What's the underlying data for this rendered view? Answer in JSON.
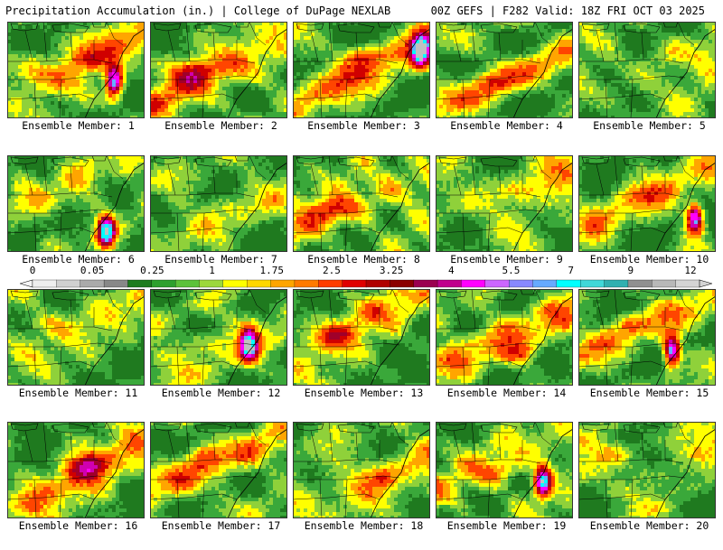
{
  "header": {
    "left_title": "Precipitation Accumulation (in.) | College of DuPage NEXLAB",
    "right_title": "00Z GEFS | F282 Valid: 18Z FRI OCT 03 2025"
  },
  "colorbar": {
    "labels": [
      "0",
      "0.05",
      "0.25",
      "1",
      "1.75",
      "2.5",
      "3.25",
      "4",
      "5.5",
      "7",
      "9",
      "12"
    ],
    "colors": [
      "#eeeeee",
      "#d0d0d0",
      "#aaaaaa",
      "#888888",
      "#1e7c1e",
      "#2ea02e",
      "#5cc23a",
      "#9cd83c",
      "#ffff00",
      "#ffd700",
      "#ffa500",
      "#ff7a00",
      "#ff3c00",
      "#e00000",
      "#b00000",
      "#8b0000",
      "#9b0050",
      "#c0008c",
      "#ff00ff",
      "#cc66ff",
      "#8888ff",
      "#66aaff",
      "#00ffff",
      "#40d8d8",
      "#30b0b0",
      "#909090",
      "#b8b8b8",
      "#d4d4d4"
    ]
  },
  "panel_label_prefix": "Ensemble Member:",
  "members": [
    {
      "id": "1",
      "label": "Ensemble Member: 1",
      "intensity": 0.62,
      "seed": 11,
      "tropical": true,
      "tx": 0.78,
      "ty": 0.62
    },
    {
      "id": "2",
      "label": "Ensemble Member: 2",
      "intensity": 0.8,
      "seed": 23,
      "tropical": false,
      "tx": 0.4,
      "ty": 0.45
    },
    {
      "id": "3",
      "label": "Ensemble Member: 3",
      "intensity": 0.72,
      "seed": 37,
      "tropical": true,
      "tx": 0.93,
      "ty": 0.3
    },
    {
      "id": "4",
      "label": "Ensemble Member: 4",
      "intensity": 0.55,
      "seed": 41,
      "tropical": false,
      "tx": 0.25,
      "ty": 0.5
    },
    {
      "id": "5",
      "label": "Ensemble Member: 5",
      "intensity": 0.35,
      "seed": 53,
      "tropical": false,
      "tx": 0.6,
      "ty": 0.5
    },
    {
      "id": "6",
      "label": "Ensemble Member: 6",
      "intensity": 0.3,
      "seed": 61,
      "tropical": true,
      "tx": 0.72,
      "ty": 0.78
    },
    {
      "id": "7",
      "label": "Ensemble Member: 7",
      "intensity": 0.28,
      "seed": 73,
      "tropical": false,
      "tx": 0.5,
      "ty": 0.4
    },
    {
      "id": "8",
      "label": "Ensemble Member: 8",
      "intensity": 0.7,
      "seed": 89,
      "tropical": false,
      "tx": 0.55,
      "ty": 0.45
    },
    {
      "id": "9",
      "label": "Ensemble Member: 9",
      "intensity": 0.48,
      "seed": 97,
      "tropical": false,
      "tx": 0.35,
      "ty": 0.6
    },
    {
      "id": "10",
      "label": "Ensemble Member: 10",
      "intensity": 0.45,
      "seed": 103,
      "tropical": true,
      "tx": 0.85,
      "ty": 0.65
    },
    {
      "id": "11",
      "label": "Ensemble Member: 11",
      "intensity": 0.4,
      "seed": 113,
      "tropical": false,
      "tx": 0.45,
      "ty": 0.45
    },
    {
      "id": "12",
      "label": "Ensemble Member: 12",
      "intensity": 0.4,
      "seed": 127,
      "tropical": true,
      "tx": 0.72,
      "ty": 0.58
    },
    {
      "id": "13",
      "label": "Ensemble Member: 13",
      "intensity": 0.55,
      "seed": 131,
      "tropical": false,
      "tx": 0.45,
      "ty": 0.4
    },
    {
      "id": "14",
      "label": "Ensemble Member: 14",
      "intensity": 0.7,
      "seed": 139,
      "tropical": false,
      "tx": 0.3,
      "ty": 0.7
    },
    {
      "id": "15",
      "label": "Ensemble Member: 15",
      "intensity": 0.5,
      "seed": 151,
      "tropical": true,
      "tx": 0.68,
      "ty": 0.65
    },
    {
      "id": "16",
      "label": "Ensemble Member: 16",
      "intensity": 0.72,
      "seed": 163,
      "tropical": false,
      "tx": 0.25,
      "ty": 0.55
    },
    {
      "id": "17",
      "label": "Ensemble Member: 17",
      "intensity": 0.62,
      "seed": 173,
      "tropical": false,
      "tx": 0.28,
      "ty": 0.5
    },
    {
      "id": "18",
      "label": "Ensemble Member: 18",
      "intensity": 0.58,
      "seed": 181,
      "tropical": false,
      "tx": 0.35,
      "ty": 0.45
    },
    {
      "id": "19",
      "label": "Ensemble Member: 19",
      "intensity": 0.5,
      "seed": 191,
      "tropical": true,
      "tx": 0.78,
      "ty": 0.62
    },
    {
      "id": "20",
      "label": "Ensemble Member: 20",
      "intensity": 0.38,
      "seed": 199,
      "tropical": false,
      "tx": 0.5,
      "ty": 0.5
    }
  ]
}
